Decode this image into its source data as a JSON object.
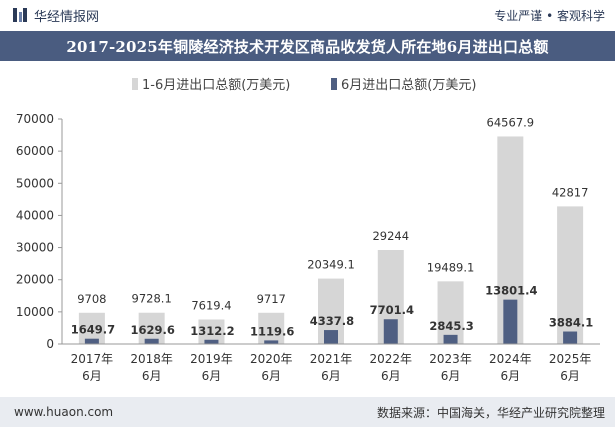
{
  "header": {
    "brand": "华经情报网",
    "tagline": "专业严谨 • 客观科学"
  },
  "footer": {
    "url": "www.huaon.com",
    "source": "数据来源：中国海关，华经产业研究院整理"
  },
  "colors": {
    "title_bg": "#4a5c80",
    "total_bar": "#d6d6d6",
    "june_bar": "#4f5f82",
    "footer_bg": "#e9ecf1"
  },
  "chart_data": {
    "type": "bar",
    "title": "2017-2025年铜陵经济技术开发区商品收发货人所在地6月进出口总额",
    "categories": [
      [
        "2017年",
        "6月"
      ],
      [
        "2018年",
        "6月"
      ],
      [
        "2019年",
        "6月"
      ],
      [
        "2020年",
        "6月"
      ],
      [
        "2021年",
        "6月"
      ],
      [
        "2022年",
        "6月"
      ],
      [
        "2023年",
        "6月"
      ],
      [
        "2024年",
        "6月"
      ],
      [
        "2025年",
        "6月"
      ]
    ],
    "series": [
      {
        "name": "1-6月进出口总额(万美元)",
        "values": [
          9708,
          9728.1,
          7619.4,
          9717,
          20349.1,
          29244,
          19489.1,
          64567.9,
          42817
        ],
        "labels": [
          "9708",
          "9728.1",
          "7619.4",
          "9717",
          "20349.1",
          "29244",
          "19489.1",
          "64567.9",
          "42817"
        ]
      },
      {
        "name": "6月进出口总额(万美元)",
        "values": [
          1649.7,
          1629.6,
          1312.2,
          1119.6,
          4337.8,
          7701.4,
          2845.3,
          13801.4,
          3884.1
        ],
        "labels": [
          "1649.7",
          "1629.6",
          "1312.2",
          "1119.6",
          "4337.8",
          "7701.4",
          "2845.3",
          "13801.4",
          "3884.1"
        ]
      }
    ],
    "yticks": [
      0,
      10000,
      20000,
      30000,
      40000,
      50000,
      60000,
      70000
    ],
    "ylim": [
      0,
      70000
    ],
    "legend_position": "top-center",
    "grid": false,
    "xlabel": "",
    "ylabel": ""
  }
}
